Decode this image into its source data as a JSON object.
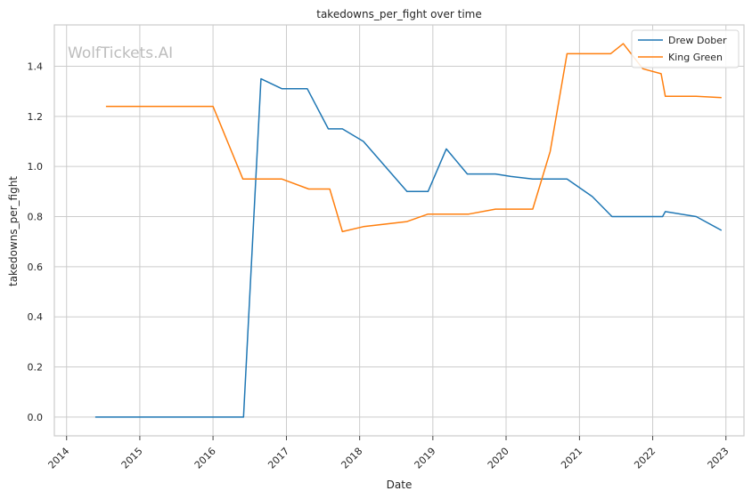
{
  "chart_data": {
    "type": "line",
    "title": "takedowns_per_fight over time",
    "xlabel": "Date",
    "ylabel": "takedowns_per_fight",
    "watermark": "WolfTickets.AI",
    "xlim": [
      "2013-11-01",
      "2023-04-01"
    ],
    "ylim": [
      -0.075,
      1.565
    ],
    "x_ticks": [
      "2014-01-01",
      "2015-01-01",
      "2016-01-01",
      "2017-01-01",
      "2018-01-01",
      "2019-01-01",
      "2020-01-01",
      "2021-01-01",
      "2022-01-01",
      "2023-01-01"
    ],
    "x_tick_labels": [
      "2014",
      "2015",
      "2016",
      "2017",
      "2018",
      "2019",
      "2020",
      "2021",
      "2022",
      "2023"
    ],
    "y_ticks": [
      0.0,
      0.2,
      0.4,
      0.6,
      0.8,
      1.0,
      1.2,
      1.4
    ],
    "y_tick_labels": [
      "0.0",
      "0.2",
      "0.4",
      "0.6",
      "0.8",
      "1.0",
      "1.2",
      "1.4"
    ],
    "grid": true,
    "legend_position": "top-right",
    "series": [
      {
        "name": "Drew Dober",
        "color": "#1f77b4",
        "points": [
          [
            "2014-05-24",
            0.0
          ],
          [
            "2016-06-01",
            0.0
          ],
          [
            "2016-08-27",
            1.35
          ],
          [
            "2016-12-10",
            1.31
          ],
          [
            "2017-04-15",
            1.31
          ],
          [
            "2017-07-29",
            1.15
          ],
          [
            "2017-10-07",
            1.15
          ],
          [
            "2018-01-20",
            1.1
          ],
          [
            "2018-08-25",
            0.9
          ],
          [
            "2018-12-08",
            0.9
          ],
          [
            "2019-03-09",
            1.07
          ],
          [
            "2019-06-22",
            0.97
          ],
          [
            "2019-11-09",
            0.97
          ],
          [
            "2020-01-25",
            0.96
          ],
          [
            "2020-05-13",
            0.95
          ],
          [
            "2020-10-31",
            0.95
          ],
          [
            "2021-03-06",
            0.88
          ],
          [
            "2021-06-12",
            0.8
          ],
          [
            "2022-02-19",
            0.8
          ],
          [
            "2022-03-05",
            0.82
          ],
          [
            "2022-08-06",
            0.8
          ],
          [
            "2022-12-10",
            0.745
          ]
        ]
      },
      {
        "name": "King Green",
        "color": "#ff7f0e",
        "points": [
          [
            "2014-07-16",
            1.24
          ],
          [
            "2016-01-01",
            1.24
          ],
          [
            "2016-05-29",
            0.95
          ],
          [
            "2016-12-10",
            0.95
          ],
          [
            "2017-04-22",
            0.91
          ],
          [
            "2017-08-05",
            0.91
          ],
          [
            "2017-10-07",
            0.74
          ],
          [
            "2018-01-20",
            0.76
          ],
          [
            "2018-08-25",
            0.78
          ],
          [
            "2018-12-08",
            0.81
          ],
          [
            "2019-06-29",
            0.81
          ],
          [
            "2019-11-09",
            0.83
          ],
          [
            "2020-05-13",
            0.83
          ],
          [
            "2020-08-08",
            1.06
          ],
          [
            "2020-10-31",
            1.45
          ],
          [
            "2021-06-05",
            1.45
          ],
          [
            "2021-08-07",
            1.49
          ],
          [
            "2021-11-13",
            1.39
          ],
          [
            "2022-02-12",
            1.37
          ],
          [
            "2022-03-05",
            1.28
          ],
          [
            "2022-08-06",
            1.28
          ],
          [
            "2022-12-10",
            1.275
          ]
        ]
      }
    ]
  }
}
